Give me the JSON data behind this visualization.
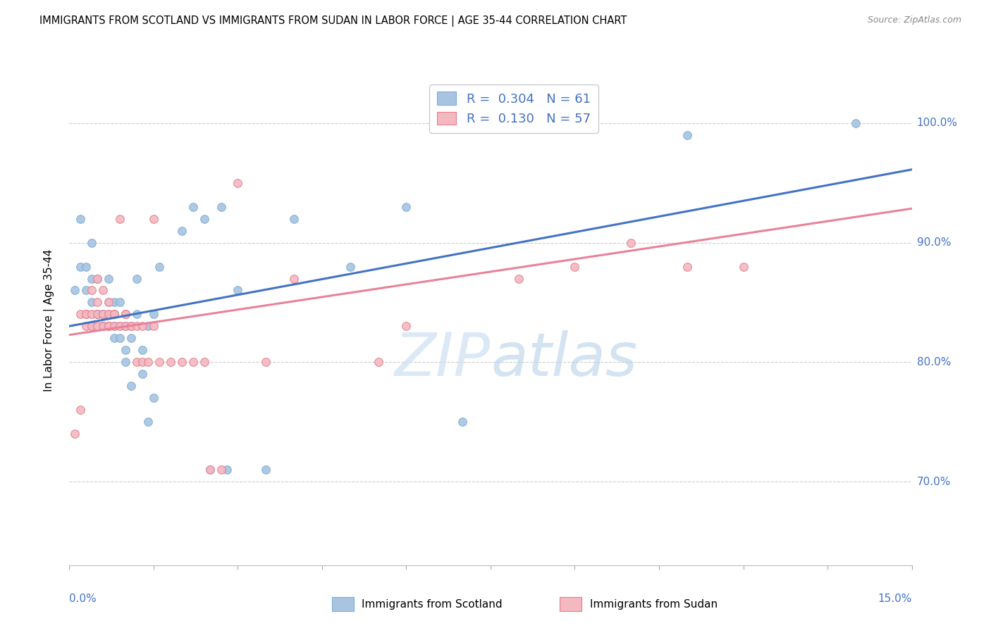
{
  "title": "IMMIGRANTS FROM SCOTLAND VS IMMIGRANTS FROM SUDAN IN LABOR FORCE | AGE 35-44 CORRELATION CHART",
  "source": "Source: ZipAtlas.com",
  "ylabel": "In Labor Force | Age 35-44",
  "right_yticks": [
    0.7,
    0.8,
    0.9,
    1.0
  ],
  "right_yticklabels": [
    "70.0%",
    "80.0%",
    "90.0%",
    "100.0%"
  ],
  "xmin": 0.0,
  "xmax": 0.15,
  "ymin": 0.63,
  "ymax": 1.04,
  "scotland_color": "#a8c4e0",
  "scotland_edge_color": "#7bafd4",
  "sudan_color": "#f4b8c1",
  "sudan_edge_color": "#e87d8a",
  "scotland_line_color": "#4472c4",
  "sudan_line_color": "#e8829a",
  "scotland_R": 0.304,
  "scotland_N": 61,
  "sudan_R": 0.13,
  "sudan_N": 57,
  "legend_label_scotland": "Immigrants from Scotland",
  "legend_label_sudan": "Immigrants from Sudan",
  "watermark_zip": "ZIP",
  "watermark_atlas": "atlas",
  "scotland_x": [
    0.001,
    0.002,
    0.002,
    0.003,
    0.003,
    0.003,
    0.004,
    0.004,
    0.004,
    0.004,
    0.005,
    0.005,
    0.005,
    0.005,
    0.005,
    0.006,
    0.006,
    0.006,
    0.006,
    0.006,
    0.007,
    0.007,
    0.007,
    0.007,
    0.007,
    0.008,
    0.008,
    0.008,
    0.008,
    0.009,
    0.009,
    0.009,
    0.01,
    0.01,
    0.01,
    0.01,
    0.011,
    0.011,
    0.012,
    0.012,
    0.013,
    0.013,
    0.014,
    0.014,
    0.015,
    0.015,
    0.016,
    0.02,
    0.022,
    0.024,
    0.025,
    0.027,
    0.028,
    0.03,
    0.035,
    0.04,
    0.05,
    0.06,
    0.07,
    0.11,
    0.14
  ],
  "scotland_y": [
    0.86,
    0.88,
    0.92,
    0.84,
    0.86,
    0.88,
    0.83,
    0.85,
    0.87,
    0.9,
    0.84,
    0.84,
    0.84,
    0.84,
    0.87,
    0.83,
    0.83,
    0.83,
    0.83,
    0.84,
    0.83,
    0.83,
    0.84,
    0.85,
    0.87,
    0.82,
    0.83,
    0.84,
    0.85,
    0.82,
    0.83,
    0.85,
    0.8,
    0.81,
    0.83,
    0.84,
    0.78,
    0.82,
    0.84,
    0.87,
    0.79,
    0.81,
    0.75,
    0.83,
    0.77,
    0.84,
    0.88,
    0.91,
    0.93,
    0.92,
    0.71,
    0.93,
    0.71,
    0.86,
    0.71,
    0.92,
    0.88,
    0.93,
    0.75,
    0.99,
    1.0
  ],
  "sudan_x": [
    0.001,
    0.002,
    0.002,
    0.003,
    0.003,
    0.003,
    0.004,
    0.004,
    0.004,
    0.005,
    0.005,
    0.005,
    0.005,
    0.006,
    0.006,
    0.006,
    0.006,
    0.007,
    0.007,
    0.007,
    0.007,
    0.008,
    0.008,
    0.008,
    0.009,
    0.009,
    0.01,
    0.01,
    0.01,
    0.011,
    0.011,
    0.012,
    0.012,
    0.013,
    0.013,
    0.014,
    0.015,
    0.015,
    0.016,
    0.018,
    0.02,
    0.022,
    0.024,
    0.025,
    0.027,
    0.03,
    0.035,
    0.04,
    0.055,
    0.06,
    0.065,
    0.07,
    0.08,
    0.09,
    0.1,
    0.11,
    0.12
  ],
  "sudan_y": [
    0.74,
    0.76,
    0.84,
    0.83,
    0.84,
    0.84,
    0.83,
    0.84,
    0.86,
    0.83,
    0.84,
    0.85,
    0.87,
    0.83,
    0.84,
    0.84,
    0.86,
    0.83,
    0.83,
    0.84,
    0.85,
    0.83,
    0.84,
    0.84,
    0.83,
    0.92,
    0.83,
    0.84,
    0.84,
    0.83,
    0.83,
    0.8,
    0.83,
    0.8,
    0.83,
    0.8,
    0.83,
    0.92,
    0.8,
    0.8,
    0.8,
    0.8,
    0.8,
    0.71,
    0.71,
    0.95,
    0.8,
    0.87,
    0.8,
    0.83,
    1.0,
    1.0,
    0.87,
    0.88,
    0.9,
    0.88,
    0.88
  ]
}
